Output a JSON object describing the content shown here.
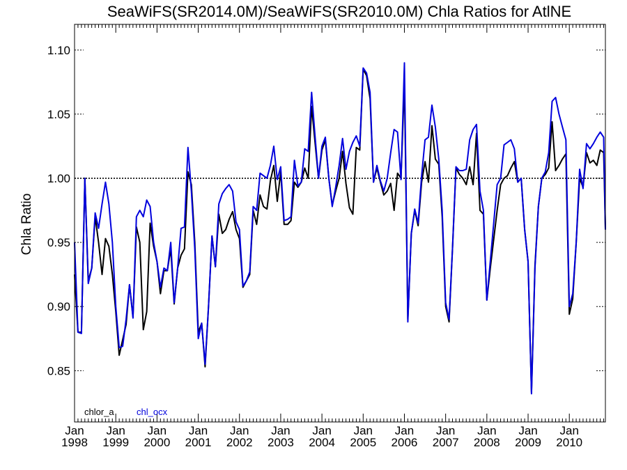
{
  "chart_data": {
    "type": "line",
    "title": "SeaWiFS(SR2014.0M)/SeaWiFS(SR2010.0M)  Chla Ratios for AtlNE",
    "ylabel": "Chla Ratio",
    "xlabel": "",
    "xlim": [
      1998.0,
      2010.875
    ],
    "ylim": [
      0.81,
      1.12
    ],
    "yticks": [
      0.85,
      0.9,
      0.95,
      1.0,
      1.05,
      1.1
    ],
    "ytick_labels": [
      "0.85",
      "0.90",
      "0.95",
      "1.00",
      "1.05",
      "1.10"
    ],
    "xticks": [
      1998,
      1999,
      2000,
      2001,
      2002,
      2003,
      2004,
      2005,
      2006,
      2007,
      2008,
      2009,
      2010
    ],
    "xtick_month_labels": [
      "Jan",
      "Jan",
      "Jan",
      "Jan",
      "Jan",
      "Jan",
      "Jan",
      "Jan",
      "Jan",
      "Jan",
      "Jan",
      "Jan",
      "Jan"
    ],
    "xtick_year_labels": [
      "1998",
      "1999",
      "2000",
      "2001",
      "2002",
      "2003",
      "2004",
      "2005",
      "2006",
      "2007",
      "2008",
      "2009",
      "2010"
    ],
    "reference_line": 1.0,
    "grid": false,
    "legend_position": "bottom-left",
    "series": [
      {
        "name": "chlor_a",
        "color": "#000000",
        "x": [
          1998.0,
          1998.083,
          1998.167,
          1998.25,
          1998.333,
          1998.417,
          1998.5,
          1998.583,
          1998.667,
          1998.75,
          1998.833,
          1998.917,
          1999.0,
          1999.083,
          1999.25,
          1999.333,
          1999.417,
          1999.5,
          1999.583,
          1999.667,
          1999.75,
          1999.833,
          1999.917,
          2000.0,
          2000.083,
          2000.167,
          2000.25,
          2000.333,
          2000.417,
          2000.5,
          2000.583,
          2000.667,
          2000.75,
          2000.833,
          2000.917,
          2001.0,
          2001.083,
          2001.167,
          2001.25,
          2001.333,
          2001.417,
          2001.5,
          2001.583,
          2001.667,
          2001.75,
          2001.833,
          2001.917,
          2002.0,
          2002.083,
          2002.167,
          2002.25,
          2002.333,
          2002.417,
          2002.5,
          2002.583,
          2002.667,
          2002.75,
          2002.833,
          2002.917,
          2003.0,
          2003.083,
          2003.167,
          2003.25,
          2003.333,
          2003.417,
          2003.5,
          2003.583,
          2003.667,
          2003.75,
          2003.833,
          2003.917,
          2004.0,
          2004.083,
          2004.167,
          2004.25,
          2004.333,
          2004.417,
          2004.5,
          2004.583,
          2004.667,
          2004.75,
          2004.833,
          2004.917,
          2005.0,
          2005.083,
          2005.167,
          2005.25,
          2005.333,
          2005.417,
          2005.5,
          2005.583,
          2005.667,
          2005.75,
          2005.833,
          2005.917,
          2006.0,
          2006.083,
          2006.167,
          2006.25,
          2006.333,
          2006.417,
          2006.5,
          2006.583,
          2006.667,
          2006.75,
          2006.833,
          2006.917,
          2007.0,
          2007.083,
          2007.167,
          2007.25,
          2007.333,
          2007.417,
          2007.5,
          2007.583,
          2007.667,
          2007.75,
          2007.833,
          2007.917,
          2008.0,
          2008.083,
          2008.25,
          2008.333,
          2008.417,
          2008.5,
          2008.583,
          2008.667,
          2008.75,
          2008.833,
          2008.917,
          2009.0,
          2009.083,
          2009.167,
          2009.25,
          2009.333,
          2009.417,
          2009.5,
          2009.583,
          2009.667,
          2009.75,
          2009.833,
          2009.917,
          2010.0,
          2010.083,
          2010.167,
          2010.25,
          2010.333,
          2010.417,
          2010.5,
          2010.583,
          2010.667,
          2010.75,
          2010.833,
          2010.875
        ],
        "values": [
          0.925,
          0.88,
          0.88,
          1.0,
          0.92,
          0.93,
          0.97,
          0.95,
          0.925,
          0.953,
          0.947,
          0.925,
          0.896,
          0.862,
          0.886,
          0.917,
          0.892,
          0.962,
          0.95,
          0.882,
          0.896,
          0.965,
          0.947,
          0.935,
          0.91,
          0.928,
          0.928,
          0.945,
          0.902,
          0.93,
          0.94,
          0.945,
          1.005,
          0.995,
          0.95,
          0.88,
          0.887,
          0.853,
          0.9,
          0.955,
          0.931,
          0.972,
          0.957,
          0.96,
          0.968,
          0.974,
          0.96,
          0.953,
          0.915,
          0.92,
          0.925,
          0.975,
          0.964,
          0.987,
          0.978,
          0.976,
          0.998,
          1.01,
          0.982,
          1.005,
          0.964,
          0.964,
          0.967,
          0.997,
          0.993,
          0.997,
          1.008,
          1.0,
          1.056,
          1.028,
          1.0,
          1.022,
          1.03,
          1.0,
          0.979,
          0.99,
          1.0,
          1.021,
          0.996,
          0.977,
          0.972,
          1.024,
          1.022,
          1.085,
          1.08,
          1.062,
          0.997,
          1.008,
          0.997,
          0.987,
          0.99,
          0.996,
          0.975,
          1.004,
          1.0,
          1.075,
          0.89,
          0.957,
          0.975,
          0.963,
          0.997,
          1.013,
          0.997,
          1.041,
          1.015,
          1.011,
          0.97,
          0.9,
          0.888,
          0.945,
          1.008,
          1.003,
          1.0,
          0.995,
          1.009,
          0.995,
          1.035,
          0.975,
          0.972,
          0.905,
          0.93,
          0.975,
          0.995,
          1.0,
          1.002,
          1.008,
          1.013,
          0.997,
          1.0,
          0.96,
          0.935,
          0.833,
          0.932,
          0.978,
          1.0,
          1.003,
          1.008,
          1.044,
          1.006,
          1.01,
          1.015,
          1.019,
          0.894,
          0.906,
          0.95,
          1.0,
          0.993,
          1.02,
          1.012,
          1.014,
          1.01,
          1.022,
          1.02,
          0.96
        ]
      },
      {
        "name": "chl_ocx",
        "color": "#0000dd",
        "x": [
          1998.0,
          1998.083,
          1998.167,
          1998.25,
          1998.333,
          1998.417,
          1998.5,
          1998.583,
          1998.667,
          1998.75,
          1998.833,
          1998.917,
          1999.0,
          1999.083,
          1999.167,
          1999.25,
          1999.333,
          1999.417,
          1999.5,
          1999.583,
          1999.667,
          1999.75,
          1999.833,
          1999.917,
          2000.0,
          2000.083,
          2000.167,
          2000.25,
          2000.333,
          2000.417,
          2000.5,
          2000.583,
          2000.667,
          2000.75,
          2000.833,
          2000.917,
          2001.0,
          2001.083,
          2001.167,
          2001.25,
          2001.333,
          2001.417,
          2001.5,
          2001.583,
          2001.667,
          2001.75,
          2001.833,
          2001.917,
          2002.0,
          2002.083,
          2002.167,
          2002.25,
          2002.333,
          2002.417,
          2002.5,
          2002.583,
          2002.667,
          2002.75,
          2002.833,
          2002.917,
          2003.0,
          2003.083,
          2003.167,
          2003.25,
          2003.333,
          2003.417,
          2003.5,
          2003.583,
          2003.667,
          2003.75,
          2003.833,
          2003.917,
          2004.0,
          2004.083,
          2004.167,
          2004.25,
          2004.333,
          2004.417,
          2004.5,
          2004.583,
          2004.667,
          2004.75,
          2004.833,
          2004.917,
          2005.0,
          2005.083,
          2005.167,
          2005.25,
          2005.333,
          2005.417,
          2005.5,
          2005.583,
          2005.667,
          2005.75,
          2005.833,
          2005.917,
          2006.0,
          2006.083,
          2006.167,
          2006.25,
          2006.333,
          2006.417,
          2006.5,
          2006.583,
          2006.667,
          2006.75,
          2006.833,
          2006.917,
          2007.0,
          2007.083,
          2007.167,
          2007.25,
          2007.333,
          2007.417,
          2007.5,
          2007.583,
          2007.667,
          2007.75,
          2007.833,
          2007.917,
          2008.0,
          2008.25,
          2008.333,
          2008.417,
          2008.5,
          2008.583,
          2008.667,
          2008.75,
          2008.833,
          2008.917,
          2009.0,
          2009.083,
          2009.167,
          2009.25,
          2009.333,
          2009.417,
          2009.5,
          2009.583,
          2009.667,
          2009.75,
          2009.833,
          2009.917,
          2010.0,
          2010.083,
          2010.167,
          2010.25,
          2010.333,
          2010.417,
          2010.5,
          2010.583,
          2010.667,
          2010.75,
          2010.833,
          2010.875
        ],
        "values": [
          0.95,
          0.88,
          0.879,
          1.0,
          0.918,
          0.93,
          0.973,
          0.961,
          0.98,
          0.997,
          0.98,
          0.95,
          0.9,
          0.868,
          0.869,
          0.89,
          0.917,
          0.891,
          0.97,
          0.975,
          0.97,
          0.983,
          0.978,
          0.95,
          0.935,
          0.915,
          0.93,
          0.928,
          0.95,
          0.903,
          0.93,
          0.961,
          0.962,
          1.024,
          0.99,
          0.945,
          0.875,
          0.887,
          0.855,
          0.9,
          0.955,
          0.931,
          0.98,
          0.988,
          0.992,
          0.995,
          0.99,
          0.966,
          0.96,
          0.916,
          0.92,
          0.927,
          0.978,
          0.975,
          1.004,
          1.002,
          1.0,
          1.01,
          1.025,
          0.999,
          1.009,
          0.967,
          0.968,
          0.97,
          1.014,
          0.994,
          0.997,
          1.023,
          1.021,
          1.067,
          1.033,
          1.0,
          1.025,
          1.032,
          1.0,
          0.978,
          0.993,
          1.01,
          1.031,
          1.007,
          1.021,
          1.028,
          1.033,
          1.025,
          1.086,
          1.082,
          1.067,
          0.997,
          1.01,
          0.998,
          0.99,
          1.0,
          1.02,
          1.038,
          1.036,
          0.999,
          1.09,
          0.888,
          0.957,
          0.976,
          0.965,
          1.002,
          1.03,
          1.032,
          1.057,
          1.04,
          1.015,
          0.975,
          0.903,
          0.89,
          0.945,
          1.009,
          1.006,
          1.006,
          1.007,
          1.03,
          1.038,
          1.042,
          0.99,
          0.975,
          0.905,
          0.995,
          1.0,
          1.026,
          1.028,
          1.03,
          1.023,
          0.997,
          1.0,
          0.96,
          0.935,
          0.832,
          0.93,
          0.978,
          1.0,
          1.005,
          1.02,
          1.06,
          1.063,
          1.05,
          1.04,
          1.03,
          0.9,
          0.91,
          0.95,
          1.007,
          0.992,
          1.027,
          1.023,
          1.027,
          1.032,
          1.036,
          1.032,
          0.96
        ]
      }
    ]
  }
}
